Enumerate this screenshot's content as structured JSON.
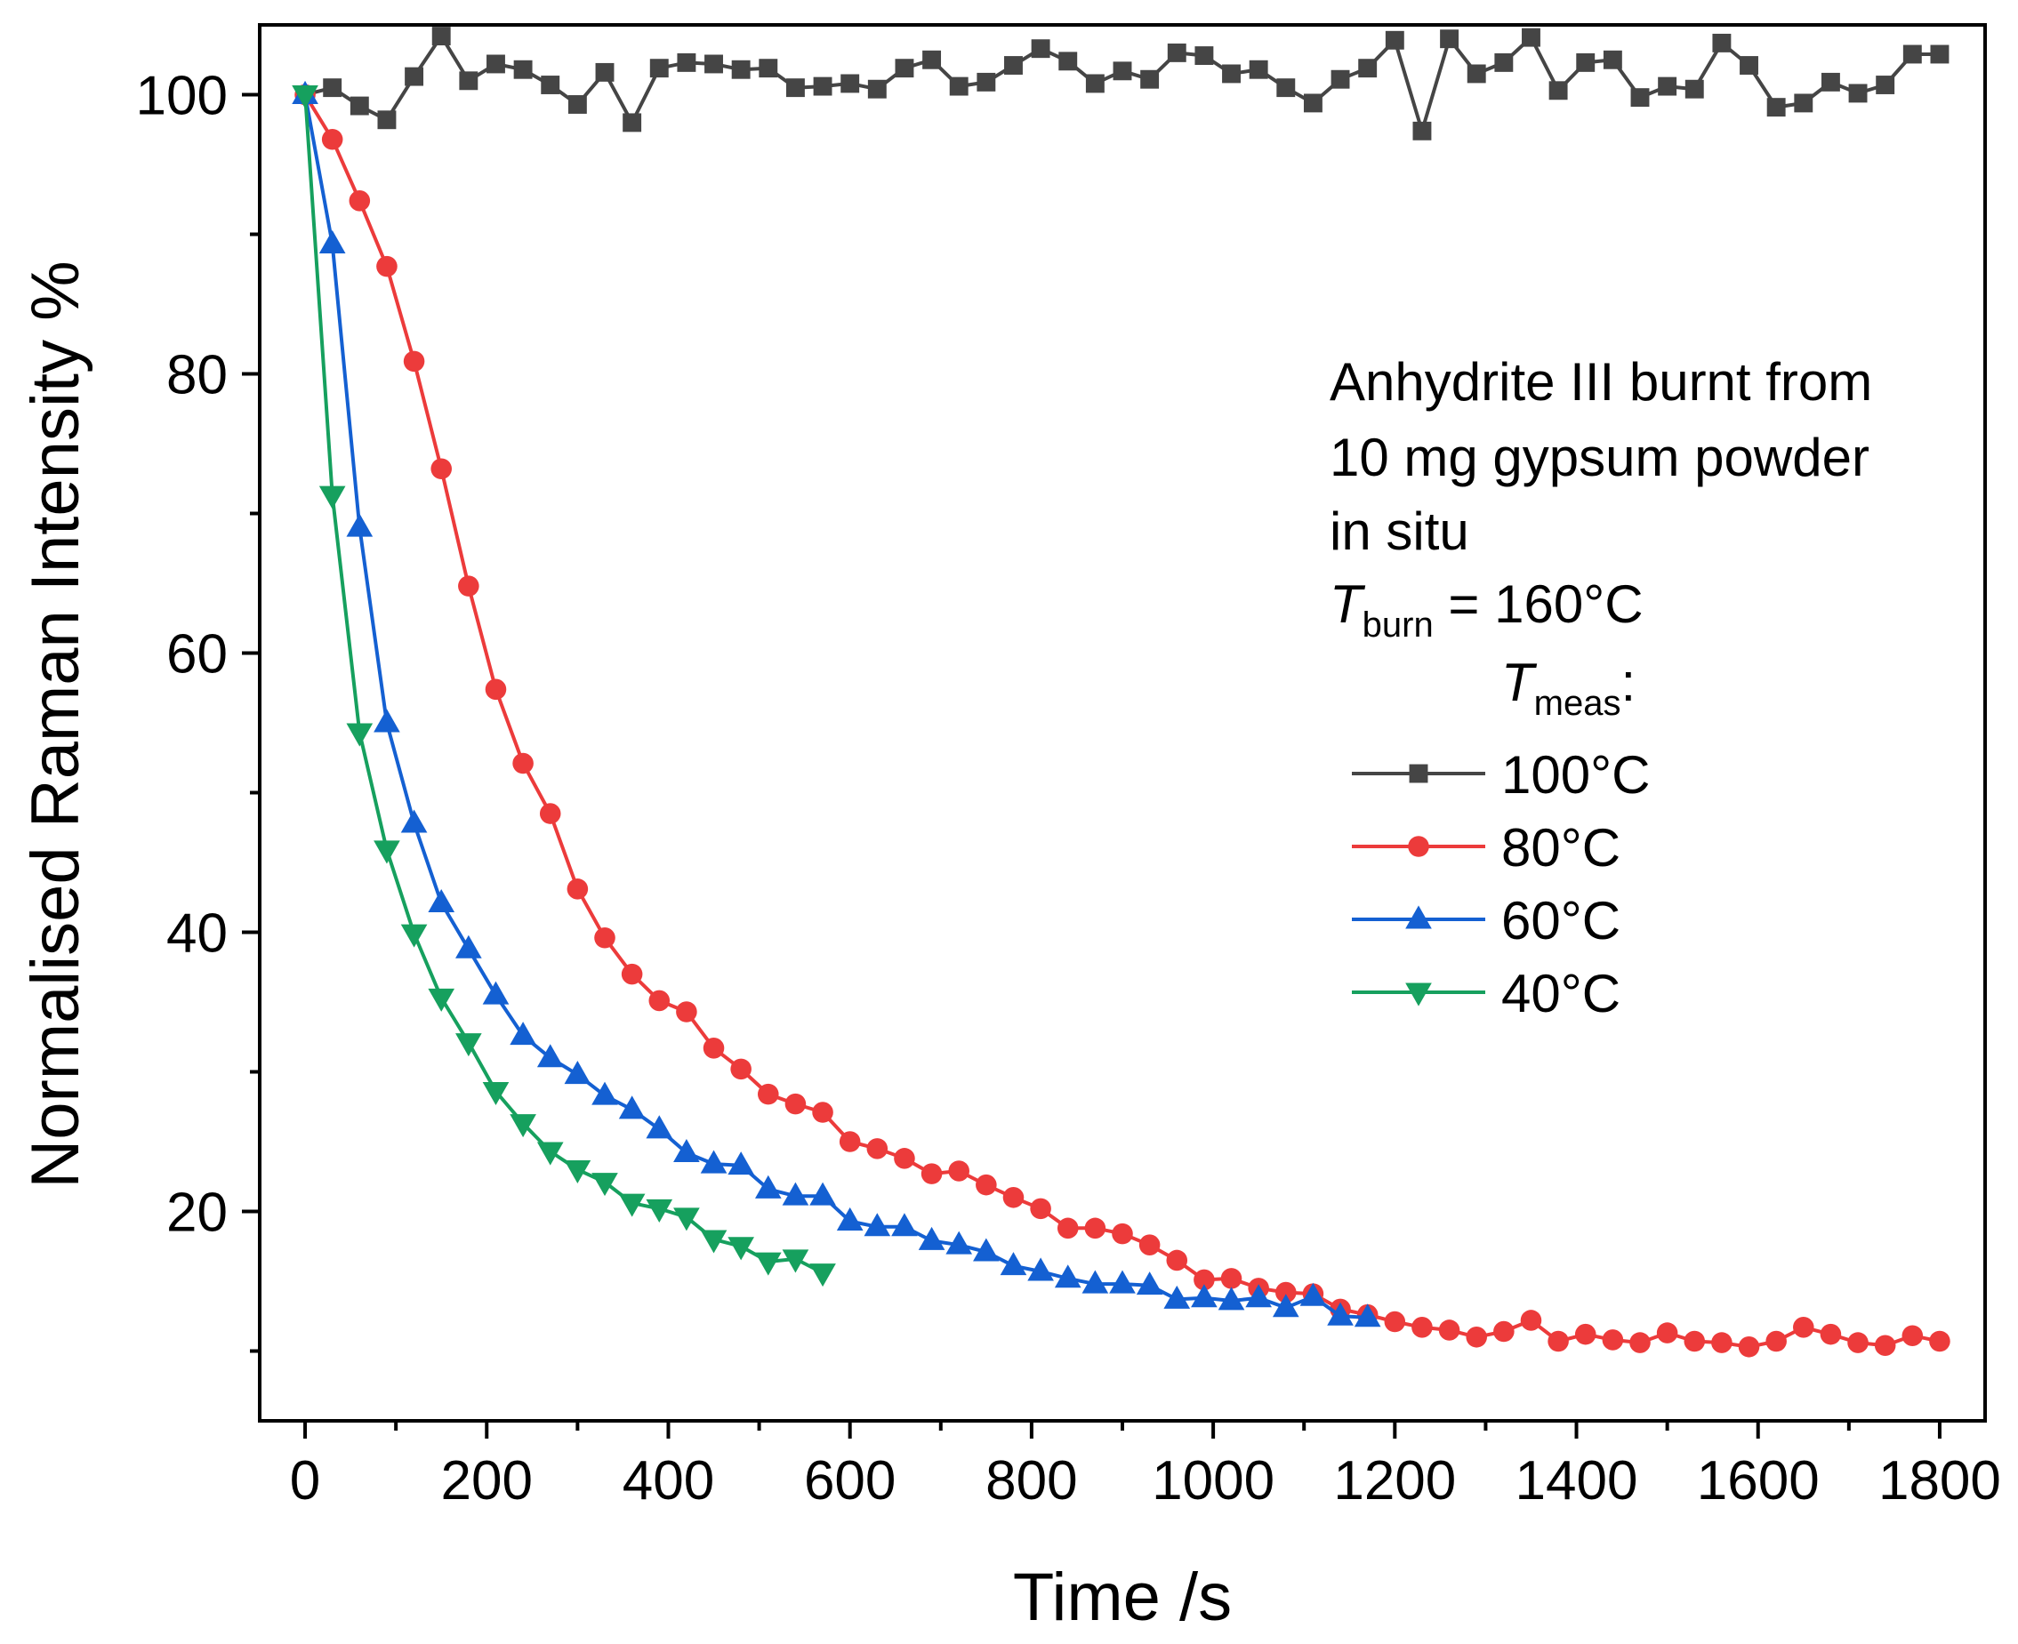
{
  "chart_data": {
    "type": "line",
    "xlabel": "Time /s",
    "ylabel": "Normalised Raman Intensity %",
    "xlim": [
      -50,
      1850
    ],
    "ylim": [
      5,
      105
    ],
    "xticks": [
      0,
      200,
      400,
      600,
      800,
      1000,
      1200,
      1400,
      1600,
      1800
    ],
    "yticks": [
      20,
      40,
      60,
      80,
      100
    ],
    "yminor_ticks": [
      10,
      30,
      50,
      70,
      90
    ],
    "grid": false,
    "annotation": {
      "lines": [
        "Anhydrite III burnt from",
        "10 mg gypsum powder",
        "in situ"
      ],
      "tburn_symbol": "T",
      "tburn_sub": "burn",
      "tburn_value": " = 160°C",
      "tmeas_symbol": "T",
      "tmeas_sub": "meas",
      "tmeas_suffix": ":"
    },
    "legend_position": "right",
    "series": [
      {
        "name": "100°C",
        "color": "#454545",
        "marker": "square",
        "x": [
          0,
          30,
          60,
          90,
          120,
          150,
          180,
          210,
          240,
          270,
          300,
          330,
          360,
          390,
          420,
          450,
          480,
          510,
          540,
          570,
          600,
          630,
          660,
          690,
          720,
          750,
          780,
          810,
          840,
          870,
          900,
          930,
          960,
          990,
          1020,
          1050,
          1080,
          1110,
          1140,
          1170,
          1200,
          1230,
          1260,
          1290,
          1320,
          1350,
          1380,
          1410,
          1440,
          1470,
          1500,
          1530,
          1560,
          1590,
          1620,
          1650,
          1680,
          1710,
          1740,
          1770,
          1800
        ],
        "values": [
          100,
          100.5,
          99.2,
          98.2,
          101.3,
          104.2,
          101,
          102.2,
          101.8,
          100.7,
          99.3,
          101.6,
          98,
          101.9,
          102.3,
          102.2,
          101.8,
          101.9,
          100.5,
          100.6,
          100.8,
          100.4,
          101.9,
          102.5,
          100.6,
          100.9,
          102.1,
          103.3,
          102.4,
          100.8,
          101.7,
          101.1,
          103,
          102.8,
          101.5,
          101.8,
          100.5,
          99.4,
          101.1,
          101.9,
          103.9,
          97.4,
          104,
          101.5,
          102.3,
          104.1,
          100.3,
          102.3,
          102.5,
          99.8,
          100.6,
          100.4,
          103.7,
          102.1,
          99.1,
          99.4,
          100.9,
          100.1,
          100.7,
          102.9,
          102.9
        ]
      },
      {
        "name": "80°C",
        "color": "#ec3b3b",
        "marker": "circle",
        "x": [
          0,
          30,
          60,
          90,
          120,
          150,
          180,
          210,
          240,
          270,
          300,
          330,
          360,
          390,
          420,
          450,
          480,
          510,
          540,
          570,
          600,
          630,
          660,
          690,
          720,
          750,
          780,
          810,
          840,
          870,
          900,
          930,
          960,
          990,
          1020,
          1050,
          1080,
          1110,
          1140,
          1170,
          1200,
          1230,
          1260,
          1290,
          1320,
          1350,
          1380,
          1410,
          1440,
          1470,
          1500,
          1530,
          1560,
          1590,
          1620,
          1650,
          1680,
          1710,
          1740,
          1770,
          1800
        ],
        "values": [
          100,
          96.8,
          92.4,
          87.7,
          80.9,
          73.2,
          64.8,
          57.4,
          52.1,
          48.5,
          43.1,
          39.6,
          37,
          35.1,
          34.3,
          31.7,
          30.2,
          28.4,
          27.7,
          27.1,
          25,
          24.5,
          23.8,
          22.7,
          22.9,
          21.9,
          21,
          20.2,
          18.8,
          18.8,
          18.4,
          17.6,
          16.5,
          15.1,
          15.2,
          14.5,
          14.2,
          14.1,
          13,
          12.6,
          12.1,
          11.7,
          11.5,
          11,
          11.4,
          12.2,
          10.7,
          11.2,
          10.8,
          10.6,
          11.3,
          10.7,
          10.6,
          10.3,
          10.7,
          11.7,
          11.2,
          10.6,
          10.4,
          11.1,
          10.7
        ]
      },
      {
        "name": "60°C",
        "color": "#1460d2",
        "marker": "triangle-up",
        "x": [
          0,
          30,
          60,
          90,
          120,
          150,
          180,
          210,
          240,
          270,
          300,
          330,
          360,
          390,
          420,
          450,
          480,
          510,
          540,
          570,
          600,
          630,
          660,
          690,
          720,
          750,
          780,
          810,
          840,
          870,
          900,
          930,
          960,
          990,
          1020,
          1050,
          1080,
          1110,
          1140,
          1170
        ],
        "values": [
          100,
          89.3,
          69,
          55,
          47.8,
          42.1,
          38.8,
          35.5,
          32.6,
          31,
          29.8,
          28.3,
          27.3,
          25.9,
          24.2,
          23.4,
          23.3,
          21.6,
          21.1,
          21.1,
          19.3,
          18.9,
          18.9,
          17.9,
          17.6,
          17.1,
          16.1,
          15.7,
          15.2,
          14.8,
          14.8,
          14.7,
          13.7,
          13.8,
          13.6,
          13.8,
          13.1,
          13.9,
          12.5,
          12.4
        ]
      },
      {
        "name": "40°C",
        "color": "#16a05e",
        "marker": "triangle-down",
        "x": [
          0,
          30,
          60,
          90,
          120,
          150,
          180,
          210,
          240,
          270,
          300,
          330,
          360,
          390,
          420,
          450,
          480,
          510,
          540,
          570
        ],
        "values": [
          100,
          71.3,
          54.3,
          45.9,
          39.9,
          35.3,
          32.1,
          28.6,
          26.3,
          24.3,
          23,
          22.1,
          20.6,
          20.2,
          19.6,
          18,
          17.5,
          16.4,
          16.6,
          15.6
        ]
      }
    ]
  }
}
